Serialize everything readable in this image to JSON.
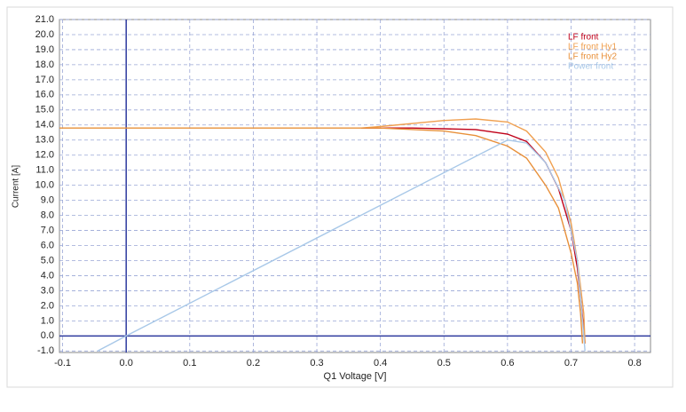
{
  "chart_data": {
    "type": "line",
    "x_label": "Q1 Voltage [V]",
    "y_label": "Current [A]",
    "xlim": [
      -0.105,
      0.825
    ],
    "ylim": [
      -1.1,
      21.0
    ],
    "xticks": [
      -0.1,
      {
        "value": 0,
        "label": "0.0"
      },
      0.1,
      0.2,
      0.3,
      0.4,
      0.5,
      0.6,
      0.7,
      0.8
    ],
    "yticks": [
      {
        "value": -1,
        "label": "-1.0"
      },
      {
        "value": 0,
        "label": "0.0"
      },
      {
        "value": 1,
        "label": "1.0"
      },
      {
        "value": 2,
        "label": "2.0"
      },
      {
        "value": 3,
        "label": "3.0"
      },
      {
        "value": 4,
        "label": "4.0"
      },
      {
        "value": 5,
        "label": "5.0"
      },
      {
        "value": 6,
        "label": "6.0"
      },
      {
        "value": 7,
        "label": "7.0"
      },
      {
        "value": 8,
        "label": "8.0"
      },
      {
        "value": 9,
        "label": "9.0"
      },
      {
        "value": 10,
        "label": "10.0"
      },
      {
        "value": 11,
        "label": "11.0"
      },
      {
        "value": 12,
        "label": "12.0"
      },
      {
        "value": 13,
        "label": "13.0"
      },
      {
        "value": 14,
        "label": "14.0"
      },
      {
        "value": 15,
        "label": "15.0"
      },
      {
        "value": 16,
        "label": "16.0"
      },
      {
        "value": 17,
        "label": "17.0"
      },
      {
        "value": 18,
        "label": "18.0"
      },
      {
        "value": 19,
        "label": "19.0"
      },
      {
        "value": 20,
        "label": "20.0"
      },
      {
        "value": 21,
        "label": "21.0"
      }
    ],
    "grid": true,
    "axis_color": "#2e3a9e",
    "legend": "top-right",
    "series": [
      {
        "name": "LF front",
        "color": "#c00018",
        "x": [
          0.37,
          0.45,
          0.55,
          0.6,
          0.63,
          0.66,
          0.68,
          0.7,
          0.71,
          0.715,
          0.72,
          0.722
        ],
        "values": [
          13.8,
          13.8,
          13.7,
          13.4,
          12.9,
          11.5,
          9.8,
          7.0,
          4.5,
          2.5,
          0.5,
          -0.5
        ]
      },
      {
        "name": "LF front Hy1",
        "color": "#f0a050",
        "x": [
          0.37,
          0.4,
          0.5,
          0.55,
          0.6,
          0.63,
          0.66,
          0.68,
          0.7,
          0.71,
          0.72,
          0.722
        ],
        "values": [
          13.8,
          13.9,
          14.3,
          14.4,
          14.2,
          13.6,
          12.2,
          10.5,
          7.5,
          5.0,
          1.5,
          -0.5
        ]
      },
      {
        "name": "LF front Hy2",
        "color": "#e8903a",
        "x": [
          -0.105,
          0.4,
          0.5,
          0.55,
          0.6,
          0.63,
          0.66,
          0.68,
          0.7,
          0.71,
          0.715,
          0.718
        ],
        "values": [
          13.8,
          13.8,
          13.6,
          13.3,
          12.6,
          11.8,
          10.0,
          8.5,
          5.5,
          3.5,
          1.5,
          -0.5
        ]
      },
      {
        "name": "Power front",
        "color": "#a8c8e8",
        "x": [
          -0.045,
          0,
          0.6,
          0.63,
          0.66,
          0.69,
          0.71,
          0.72,
          0.722
        ],
        "values": [
          -1.0,
          0,
          13.0,
          12.8,
          11.5,
          9.0,
          5.0,
          0,
          -1.0
        ]
      }
    ]
  }
}
